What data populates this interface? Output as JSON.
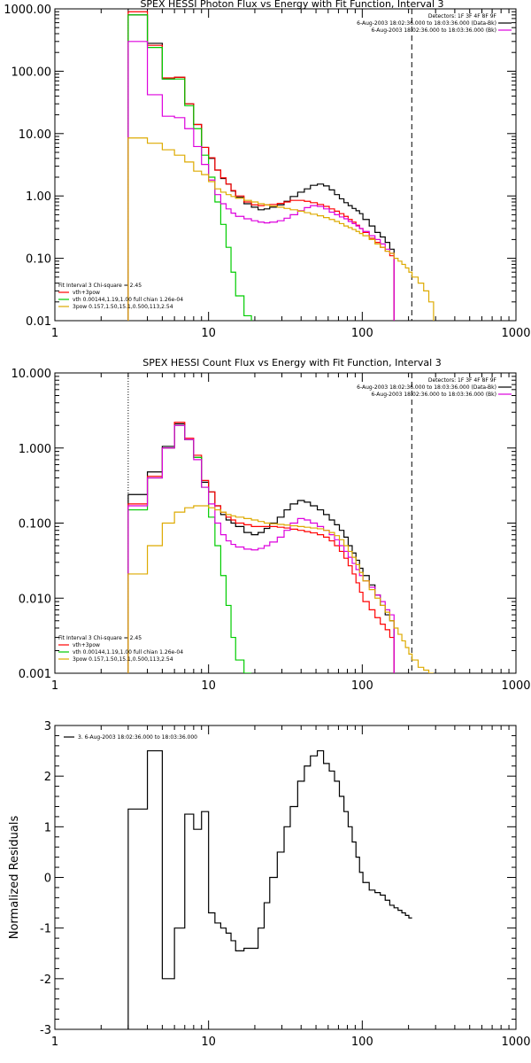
{
  "chart_data": [
    {
      "type": "line",
      "title": "SPEX HESSI Photon Flux vs Energy with Fit Function, Interval 3",
      "x_scale": "log",
      "y_scale": "log",
      "xlim": [
        1,
        1000
      ],
      "ylim": [
        0.01,
        1000
      ],
      "x_ticks": [
        "1",
        "10",
        "100",
        "1000"
      ],
      "y_ticks": [
        "0.01",
        "0.10",
        "1.00",
        "10.00",
        "100.00",
        "1000.00"
      ],
      "energy_edges": [
        3,
        4,
        5,
        6,
        7,
        8,
        9,
        10,
        11,
        12,
        13,
        14,
        15,
        17,
        19,
        21,
        23,
        25,
        28,
        31,
        34,
        38,
        42,
        46,
        51,
        56,
        61,
        66,
        71,
        76,
        81,
        86,
        91,
        96,
        101,
        111,
        121,
        131,
        141,
        151,
        161,
        171,
        181,
        191,
        201,
        211,
        231,
        251,
        271,
        291
      ],
      "series": [
        {
          "color": "#000000",
          "values": [
            800,
            280,
            75,
            80,
            30,
            14,
            6,
            4,
            2.6,
            1.9,
            1.55,
            1.2,
            0.95,
            0.75,
            0.66,
            0.6,
            0.62,
            0.66,
            0.72,
            0.82,
            0.98,
            1.15,
            1.3,
            1.48,
            1.55,
            1.45,
            1.25,
            1.05,
            0.9,
            0.78,
            0.7,
            0.63,
            0.58,
            0.52,
            0.42,
            0.33,
            0.26,
            0.22,
            0.18,
            0.14
          ]
        },
        {
          "color": "#ff0000",
          "values": [
            900,
            260,
            78,
            80,
            30,
            14,
            6,
            4.1,
            2.6,
            1.95,
            1.55,
            1.22,
            1.0,
            0.8,
            0.72,
            0.7,
            0.72,
            0.73,
            0.76,
            0.8,
            0.85,
            0.85,
            0.82,
            0.78,
            0.73,
            0.68,
            0.62,
            0.57,
            0.52,
            0.47,
            0.42,
            0.38,
            0.34,
            0.3,
            0.26,
            0.21,
            0.18,
            0.15,
            0.13,
            0.11
          ]
        },
        {
          "color": "#00cc00",
          "values": [
            800,
            240,
            75,
            75,
            28,
            12,
            4.5,
            2.0,
            0.8,
            0.35,
            0.15,
            0.06,
            0.025,
            0.012
          ]
        },
        {
          "color": "#dd00dd",
          "values": [
            300,
            42,
            19,
            18,
            12,
            6.2,
            3.2,
            1.8,
            1.05,
            0.75,
            0.62,
            0.53,
            0.47,
            0.43,
            0.4,
            0.38,
            0.37,
            0.38,
            0.4,
            0.44,
            0.5,
            0.58,
            0.65,
            0.7,
            0.68,
            0.62,
            0.55,
            0.5,
            0.46,
            0.43,
            0.39,
            0.36,
            0.33,
            0.3,
            0.27,
            0.23,
            0.2,
            0.17,
            0.14,
            0.12
          ]
        },
        {
          "color": "#ddaa00",
          "values": [
            8.5,
            7.0,
            5.5,
            4.5,
            3.5,
            2.5,
            2.2,
            1.7,
            1.3,
            1.15,
            1.05,
            0.98,
            0.92,
            0.85,
            0.8,
            0.75,
            0.72,
            0.69,
            0.66,
            0.63,
            0.6,
            0.57,
            0.54,
            0.51,
            0.48,
            0.45,
            0.42,
            0.39,
            0.36,
            0.33,
            0.31,
            0.29,
            0.27,
            0.25,
            0.23,
            0.2,
            0.17,
            0.15,
            0.13,
            0.12,
            0.1,
            0.09,
            0.08,
            0.07,
            0.06,
            0.05,
            0.04,
            0.03,
            0.02
          ]
        }
      ],
      "vline_dotted_at": 3,
      "vline_dashed_at": 210,
      "legend_top": [
        "Detectors: 1F 3F 4F 8F 9F",
        "6-Aug-2003 18:02:36.000 to 18:03:36.000 (Data-Bk)",
        "6-Aug-2003 18:02:36.000 to 18:03:36.000 (Bk)"
      ],
      "legend_bottom": [
        "Fit Interval 3   Chi-square = 2.45",
        "vth+3pow",
        "vth 0.00144,1.19,1.00  full chian 1.26e-04",
        "3pow 0.157,1.50,15.1,0.500,113,2.54"
      ]
    },
    {
      "type": "line",
      "title": "SPEX HESSI Count Flux vs Energy with Fit Function, Interval 3",
      "x_scale": "log",
      "y_scale": "log",
      "xlim": [
        1,
        1000
      ],
      "ylim": [
        0.001,
        10
      ],
      "x_ticks": [
        "1",
        "10",
        "100",
        "1000"
      ],
      "y_ticks": [
        "0.001",
        "0.010",
        "0.100",
        "1.000",
        "10.000"
      ],
      "energy_edges": [
        3,
        4,
        5,
        6,
        7,
        8,
        9,
        10,
        11,
        12,
        13,
        14,
        15,
        17,
        19,
        21,
        23,
        25,
        28,
        31,
        34,
        38,
        42,
        46,
        51,
        56,
        61,
        66,
        71,
        76,
        81,
        86,
        91,
        96,
        101,
        111,
        121,
        131,
        141,
        151,
        161,
        171,
        181,
        191,
        201,
        211,
        231,
        251,
        271,
        291
      ],
      "series": [
        {
          "color": "#000000",
          "values": [
            0.24,
            0.48,
            1.05,
            2.1,
            1.3,
            0.75,
            0.35,
            0.26,
            0.17,
            0.13,
            0.11,
            0.1,
            0.09,
            0.075,
            0.07,
            0.075,
            0.085,
            0.1,
            0.12,
            0.15,
            0.18,
            0.2,
            0.19,
            0.17,
            0.15,
            0.13,
            0.11,
            0.095,
            0.08,
            0.065,
            0.05,
            0.04,
            0.032,
            0.025,
            0.02,
            0.015,
            0.011,
            0.008,
            0.006,
            0.005
          ]
        },
        {
          "color": "#ff0000",
          "values": [
            0.18,
            0.42,
            1.0,
            2.2,
            1.35,
            0.8,
            0.37,
            0.26,
            0.17,
            0.14,
            0.12,
            0.11,
            0.1,
            0.095,
            0.09,
            0.09,
            0.09,
            0.09,
            0.088,
            0.086,
            0.083,
            0.08,
            0.077,
            0.074,
            0.07,
            0.065,
            0.058,
            0.05,
            0.042,
            0.034,
            0.027,
            0.021,
            0.016,
            0.012,
            0.009,
            0.007,
            0.0055,
            0.0045,
            0.0038,
            0.003
          ]
        },
        {
          "color": "#00cc00",
          "values": [
            0.15,
            0.4,
            1.0,
            2.0,
            1.3,
            0.75,
            0.3,
            0.12,
            0.05,
            0.02,
            0.008,
            0.003,
            0.0015,
            0.001
          ]
        },
        {
          "color": "#dd00dd",
          "values": [
            0.17,
            0.4,
            1.0,
            2.0,
            1.3,
            0.7,
            0.3,
            0.18,
            0.1,
            0.07,
            0.058,
            0.052,
            0.048,
            0.045,
            0.044,
            0.046,
            0.05,
            0.056,
            0.065,
            0.08,
            0.1,
            0.115,
            0.11,
            0.1,
            0.09,
            0.08,
            0.07,
            0.06,
            0.05,
            0.042,
            0.035,
            0.029,
            0.024,
            0.02,
            0.017,
            0.014,
            0.011,
            0.009,
            0.007,
            0.006
          ]
        },
        {
          "color": "#ddaa00",
          "values": [
            0.021,
            0.05,
            0.1,
            0.14,
            0.16,
            0.17,
            0.17,
            0.16,
            0.15,
            0.14,
            0.13,
            0.125,
            0.12,
            0.115,
            0.11,
            0.105,
            0.1,
            0.098,
            0.096,
            0.094,
            0.092,
            0.09,
            0.088,
            0.086,
            0.084,
            0.08,
            0.075,
            0.068,
            0.06,
            0.05,
            0.042,
            0.035,
            0.028,
            0.022,
            0.017,
            0.013,
            0.01,
            0.008,
            0.0065,
            0.005,
            0.004,
            0.0033,
            0.0027,
            0.0022,
            0.0018,
            0.0015,
            0.0012,
            0.0011,
            0.001
          ]
        }
      ],
      "vline_dotted_at": 3,
      "vline_dashed_at": 210,
      "legend_top": [
        "Detectors: 1F 3F 4F 8F 9F",
        "6-Aug-2003 18:02:36.000 to 18:03:36.000 (Data-Bk)",
        "6-Aug-2003 18:02:36.000 to 18:03:36.000 (Bk)"
      ],
      "legend_bottom": [
        "Fit Interval 3   Chi-square = 2.45",
        "vth+3pow",
        "vth 0.00144,1.19,1.00  full chian 1.26e-04",
        "3pow 0.157,1.50,15.1,0.500,113,2.54"
      ]
    },
    {
      "type": "line",
      "ylabel": "Normalized Residuals",
      "x_scale": "log",
      "xlim": [
        1,
        1000
      ],
      "ylim": [
        -3,
        3
      ],
      "x_ticks": [
        "1",
        "10",
        "100",
        "1000"
      ],
      "y_ticks": [
        "-3",
        "-2",
        "-1",
        "0",
        "1",
        "2",
        "3"
      ],
      "energy_edges": [
        3,
        4,
        5,
        6,
        7,
        8,
        9,
        10,
        11,
        12,
        13,
        14,
        15,
        17,
        19,
        21,
        23,
        25,
        28,
        31,
        34,
        38,
        42,
        46,
        51,
        56,
        61,
        66,
        71,
        76,
        81,
        86,
        91,
        96,
        101,
        111,
        121,
        131,
        141,
        151,
        161,
        171,
        181,
        191,
        201,
        211
      ],
      "series": [
        {
          "color": "#000000",
          "values": [
            1.35,
            2.5,
            -2.0,
            -1.0,
            1.25,
            0.95,
            1.3,
            -0.7,
            -0.9,
            -1.0,
            -1.1,
            -1.25,
            -1.45,
            -1.4,
            -1.4,
            -1.0,
            -0.5,
            0.0,
            0.5,
            1.0,
            1.4,
            1.9,
            2.2,
            2.4,
            2.5,
            2.25,
            2.1,
            1.9,
            1.6,
            1.3,
            1.0,
            0.7,
            0.4,
            0.1,
            -0.1,
            -0.25,
            -0.3,
            -0.35,
            -0.45,
            -0.55,
            -0.6,
            -0.65,
            -0.7,
            -0.75,
            -0.8,
            -0.8
          ]
        }
      ],
      "legend": [
        "3.  6-Aug-2003 18:02:36.000 to 18:03:36.000"
      ]
    }
  ]
}
